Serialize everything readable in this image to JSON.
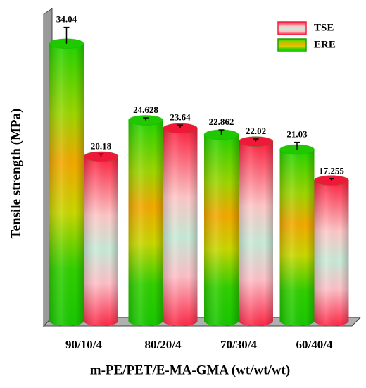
{
  "chart_data": {
    "type": "cylinder-bar",
    "y_label": "Tensile strength (MPa)",
    "x_label": "m-PE/PET/E-MA-GMA (wt/wt/wt)",
    "categories": [
      "90/10/4",
      "80/20/4",
      "70/30/4",
      "60/40/4"
    ],
    "ylim": [
      0,
      38
    ],
    "series": [
      {
        "name": "ERE",
        "color": "green",
        "values": [
          34.04,
          24.628,
          22.862,
          21.03
        ],
        "errors": [
          2.0,
          0.3,
          0.6,
          0.9
        ]
      },
      {
        "name": "TSE",
        "color": "red",
        "values": [
          20.18,
          23.64,
          22.02,
          17.255
        ],
        "errors": [
          0.3,
          0.4,
          0.3,
          0.2
        ]
      }
    ]
  }
}
